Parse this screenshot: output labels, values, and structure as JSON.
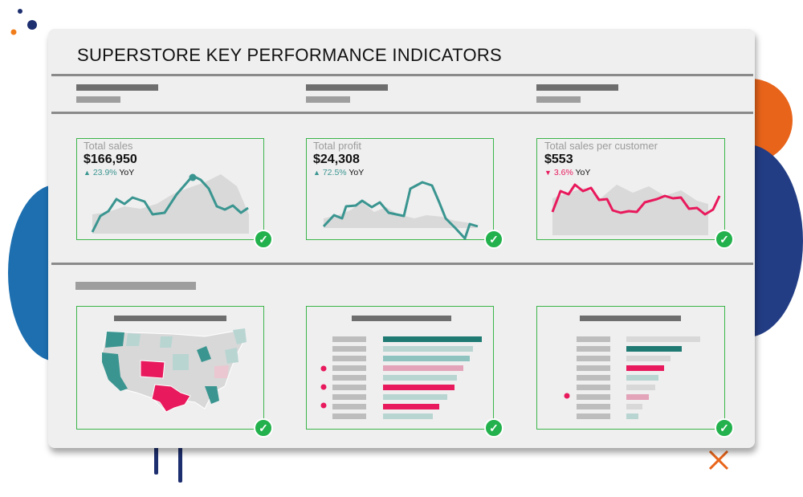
{
  "header": {
    "title": "SUPERSTORE KEY PERFORMANCE INDICATORS"
  },
  "kpis": [
    {
      "label": "Total sales",
      "value": "$166,950",
      "change": "23.9%",
      "direction": "up",
      "suffix": "YoY",
      "color": "#3a9590"
    },
    {
      "label": "Total profit",
      "value": "$24,308",
      "change": "72.5%",
      "direction": "up",
      "suffix": "YoY",
      "color": "#3a9590"
    },
    {
      "label": "Total sales per customer",
      "value": "$553",
      "change": "3.6%",
      "direction": "down",
      "suffix": "YoY",
      "color": "#e8195c"
    }
  ],
  "colors": {
    "teal": "#3a9590",
    "pink": "#e8195c",
    "check": "#22b14c",
    "border": "#3bb54a"
  },
  "icons": {
    "up": "▲",
    "down": "▼",
    "check": "✓"
  }
}
